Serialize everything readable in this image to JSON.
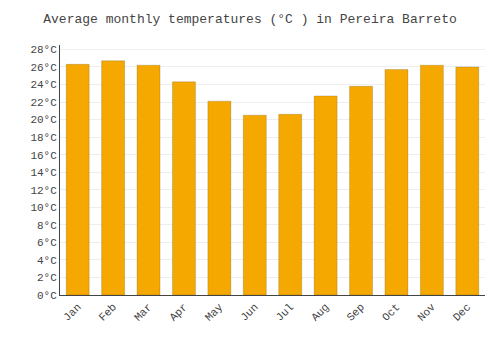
{
  "chart_data": {
    "type": "bar",
    "title": "Average monthly temperatures (°C ) in Pereira Barreto",
    "categories": [
      "Jan",
      "Feb",
      "Mar",
      "Apr",
      "May",
      "Jun",
      "Jul",
      "Aug",
      "Sep",
      "Oct",
      "Nov",
      "Dec"
    ],
    "values": [
      26.3,
      26.7,
      26.2,
      24.3,
      22.1,
      20.5,
      20.6,
      22.7,
      23.8,
      25.7,
      26.2,
      26.0
    ],
    "color": "#F5A800",
    "ylim": [
      0,
      28.5
    ],
    "yticks": [
      {
        "value": 0,
        "label": "0°C"
      },
      {
        "value": 2,
        "label": "2°C"
      },
      {
        "value": 4,
        "label": "4°C"
      },
      {
        "value": 6,
        "label": "6°C"
      },
      {
        "value": 8,
        "label": "8°C"
      },
      {
        "value": 10,
        "label": "10°C"
      },
      {
        "value": 12,
        "label": "12°C"
      },
      {
        "value": 14,
        "label": "14°C"
      },
      {
        "value": 16,
        "label": "16°C"
      },
      {
        "value": 18,
        "label": "18°C"
      },
      {
        "value": 20,
        "label": "20°C"
      },
      {
        "value": 22,
        "label": "22°C"
      },
      {
        "value": 24,
        "label": "24°C"
      },
      {
        "value": 26,
        "label": "26°C"
      },
      {
        "value": 28,
        "label": "28°C"
      }
    ],
    "grid": true
  }
}
